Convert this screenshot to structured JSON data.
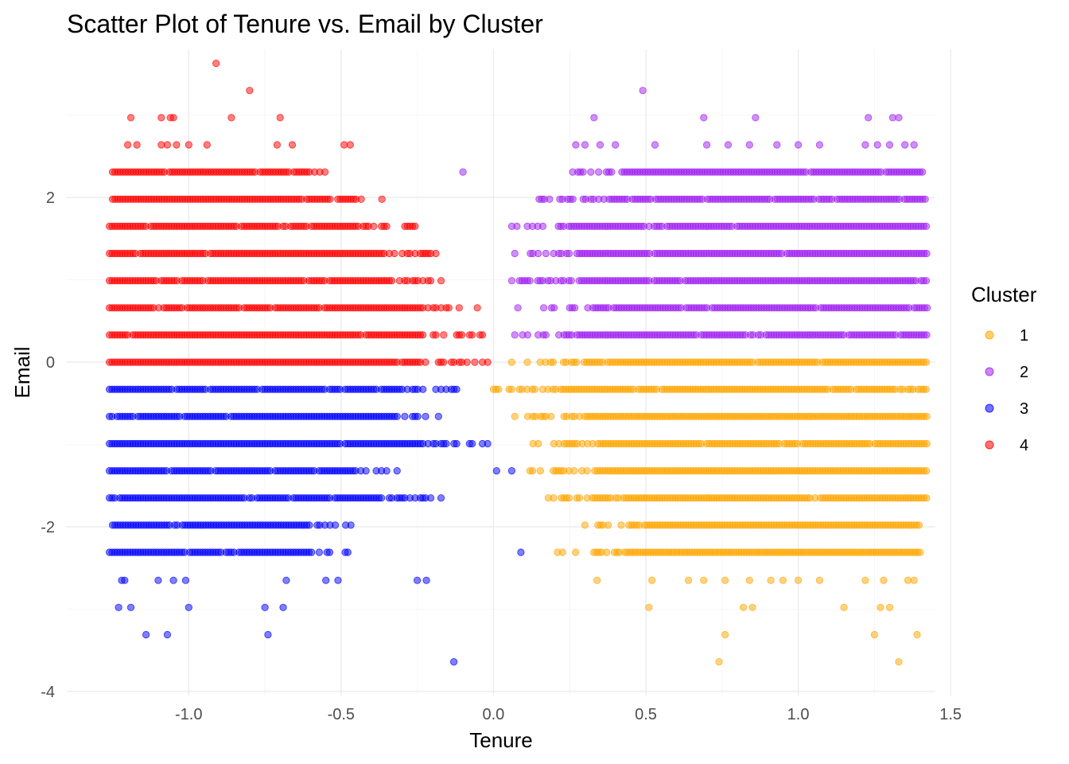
{
  "chart_data": {
    "type": "scatter",
    "title": "Scatter Plot of Tenure vs. Email by Cluster",
    "xlabel": "Tenure",
    "ylabel": "Email",
    "xlim": [
      -1.4,
      1.45
    ],
    "ylim": [
      -4.05,
      3.8
    ],
    "x_ticks": [
      -1.0,
      -0.5,
      0.0,
      0.5,
      1.0,
      1.5
    ],
    "x_tick_labels": [
      "-1.0",
      "-0.5",
      "0.0",
      "0.5",
      "1.0",
      "1.5"
    ],
    "y_ticks": [
      -4,
      -2,
      0,
      2
    ],
    "y_tick_labels": [
      "-4",
      "-2",
      "0",
      "2"
    ],
    "grid": true,
    "legend": {
      "title": "Cluster",
      "placement": "right"
    },
    "series": [
      {
        "name": "1",
        "color": "#FFA500",
        "bands": [
          {
            "y": 0.0,
            "range": [
              0.06,
              1.42
            ]
          },
          {
            "y": -0.33,
            "range": [
              0.0,
              1.42
            ]
          },
          {
            "y": -0.66,
            "range": [
              0.07,
              1.42
            ]
          },
          {
            "y": -0.99,
            "range": [
              0.13,
              1.42
            ]
          },
          {
            "y": -1.32,
            "range": [
              0.12,
              1.42
            ]
          },
          {
            "y": -1.65,
            "range": [
              0.18,
              1.42
            ]
          },
          {
            "y": -1.98,
            "range": [
              0.3,
              1.4
            ]
          },
          {
            "y": -2.31,
            "range": [
              0.21,
              1.4
            ]
          }
        ],
        "points": [
          [
            0.34,
            -2.65
          ],
          [
            0.52,
            -2.65
          ],
          [
            0.64,
            -2.65
          ],
          [
            0.69,
            -2.65
          ],
          [
            0.76,
            -2.65
          ],
          [
            0.84,
            -2.65
          ],
          [
            0.91,
            -2.65
          ],
          [
            0.95,
            -2.65
          ],
          [
            1.0,
            -2.65
          ],
          [
            1.07,
            -2.65
          ],
          [
            1.22,
            -2.65
          ],
          [
            1.28,
            -2.65
          ],
          [
            1.36,
            -2.65
          ],
          [
            1.38,
            -2.65
          ],
          [
            0.51,
            -2.98
          ],
          [
            0.82,
            -2.98
          ],
          [
            0.85,
            -2.98
          ],
          [
            1.15,
            -2.98
          ],
          [
            1.27,
            -2.98
          ],
          [
            1.3,
            -2.98
          ],
          [
            0.76,
            -3.31
          ],
          [
            1.25,
            -3.31
          ],
          [
            1.39,
            -3.31
          ],
          [
            0.74,
            -3.64
          ],
          [
            1.33,
            -3.64
          ]
        ]
      },
      {
        "name": "2",
        "color": "#A020F0",
        "bands": [
          {
            "y": 0.33,
            "range": [
              0.07,
              1.42
            ]
          },
          {
            "y": 0.66,
            "range": [
              0.08,
              1.42
            ]
          },
          {
            "y": 0.99,
            "range": [
              0.06,
              1.42
            ]
          },
          {
            "y": 1.32,
            "range": [
              0.07,
              1.42
            ]
          },
          {
            "y": 1.65,
            "range": [
              0.06,
              1.42
            ]
          },
          {
            "y": 1.98,
            "range": [
              0.15,
              1.42
            ]
          },
          {
            "y": 2.31,
            "range": [
              0.26,
              1.41
            ]
          }
        ],
        "points": [
          [
            -0.1,
            2.31
          ],
          [
            0.27,
            2.64
          ],
          [
            0.3,
            2.64
          ],
          [
            0.35,
            2.64
          ],
          [
            0.4,
            2.64
          ],
          [
            0.53,
            2.64
          ],
          [
            0.7,
            2.64
          ],
          [
            0.77,
            2.64
          ],
          [
            0.84,
            2.64
          ],
          [
            0.93,
            2.64
          ],
          [
            1.0,
            2.64
          ],
          [
            1.07,
            2.64
          ],
          [
            1.22,
            2.64
          ],
          [
            1.26,
            2.64
          ],
          [
            1.3,
            2.64
          ],
          [
            1.35,
            2.64
          ],
          [
            1.38,
            2.64
          ],
          [
            0.33,
            2.97
          ],
          [
            0.69,
            2.97
          ],
          [
            0.86,
            2.97
          ],
          [
            1.23,
            2.97
          ],
          [
            1.31,
            2.97
          ],
          [
            1.33,
            2.97
          ],
          [
            0.49,
            3.3
          ]
        ]
      },
      {
        "name": "3",
        "color": "#0000FF",
        "bands": [
          {
            "y": -0.33,
            "range": [
              -1.26,
              -0.12
            ]
          },
          {
            "y": -0.66,
            "range": [
              -1.26,
              -0.18
            ]
          },
          {
            "y": -0.99,
            "range": [
              -1.26,
              -0.02
            ]
          },
          {
            "y": -1.32,
            "range": [
              -1.26,
              -0.32
            ]
          },
          {
            "y": -1.65,
            "range": [
              -1.26,
              -0.17
            ]
          },
          {
            "y": -1.98,
            "range": [
              -1.25,
              -0.47
            ]
          },
          {
            "y": -2.31,
            "range": [
              -1.26,
              -0.48
            ]
          }
        ],
        "points": [
          [
            0.01,
            -1.32
          ],
          [
            0.06,
            -1.32
          ],
          [
            0.09,
            -2.31
          ],
          [
            -1.22,
            -2.65
          ],
          [
            -1.21,
            -2.65
          ],
          [
            -1.1,
            -2.65
          ],
          [
            -1.05,
            -2.65
          ],
          [
            -1.01,
            -2.65
          ],
          [
            -0.68,
            -2.65
          ],
          [
            -0.55,
            -2.65
          ],
          [
            -0.51,
            -2.65
          ],
          [
            -0.25,
            -2.65
          ],
          [
            -0.22,
            -2.65
          ],
          [
            -1.23,
            -2.98
          ],
          [
            -1.19,
            -2.98
          ],
          [
            -1.0,
            -2.98
          ],
          [
            -0.75,
            -2.98
          ],
          [
            -0.69,
            -2.98
          ],
          [
            -1.14,
            -3.31
          ],
          [
            -1.07,
            -3.31
          ],
          [
            -0.74,
            -3.31
          ],
          [
            -0.13,
            -3.64
          ]
        ]
      },
      {
        "name": "4",
        "color": "#FF0000",
        "bands": [
          {
            "y": 0.0,
            "range": [
              -1.26,
              -0.02
            ]
          },
          {
            "y": 0.33,
            "range": [
              -1.26,
              -0.04
            ]
          },
          {
            "y": 0.66,
            "range": [
              -1.26,
              -0.05
            ]
          },
          {
            "y": 0.99,
            "range": [
              -1.26,
              -0.17
            ]
          },
          {
            "y": 1.32,
            "range": [
              -1.26,
              -0.19
            ]
          },
          {
            "y": 1.65,
            "range": [
              -1.26,
              -0.26
            ]
          },
          {
            "y": 1.98,
            "range": [
              -1.25,
              -0.37
            ]
          },
          {
            "y": 2.31,
            "range": [
              -1.25,
              -0.55
            ]
          }
        ],
        "points": [
          [
            -1.2,
            2.64
          ],
          [
            -1.17,
            2.64
          ],
          [
            -1.09,
            2.64
          ],
          [
            -1.07,
            2.64
          ],
          [
            -1.04,
            2.64
          ],
          [
            -1.0,
            2.64
          ],
          [
            -0.94,
            2.64
          ],
          [
            -0.71,
            2.64
          ],
          [
            -0.66,
            2.64
          ],
          [
            -0.49,
            2.64
          ],
          [
            -0.47,
            2.64
          ],
          [
            -1.19,
            2.97
          ],
          [
            -1.09,
            2.97
          ],
          [
            -1.06,
            2.97
          ],
          [
            -1.05,
            2.97
          ],
          [
            -0.86,
            2.97
          ],
          [
            -0.7,
            2.97
          ],
          [
            -0.8,
            3.3
          ],
          [
            -0.91,
            3.63
          ]
        ]
      }
    ]
  }
}
